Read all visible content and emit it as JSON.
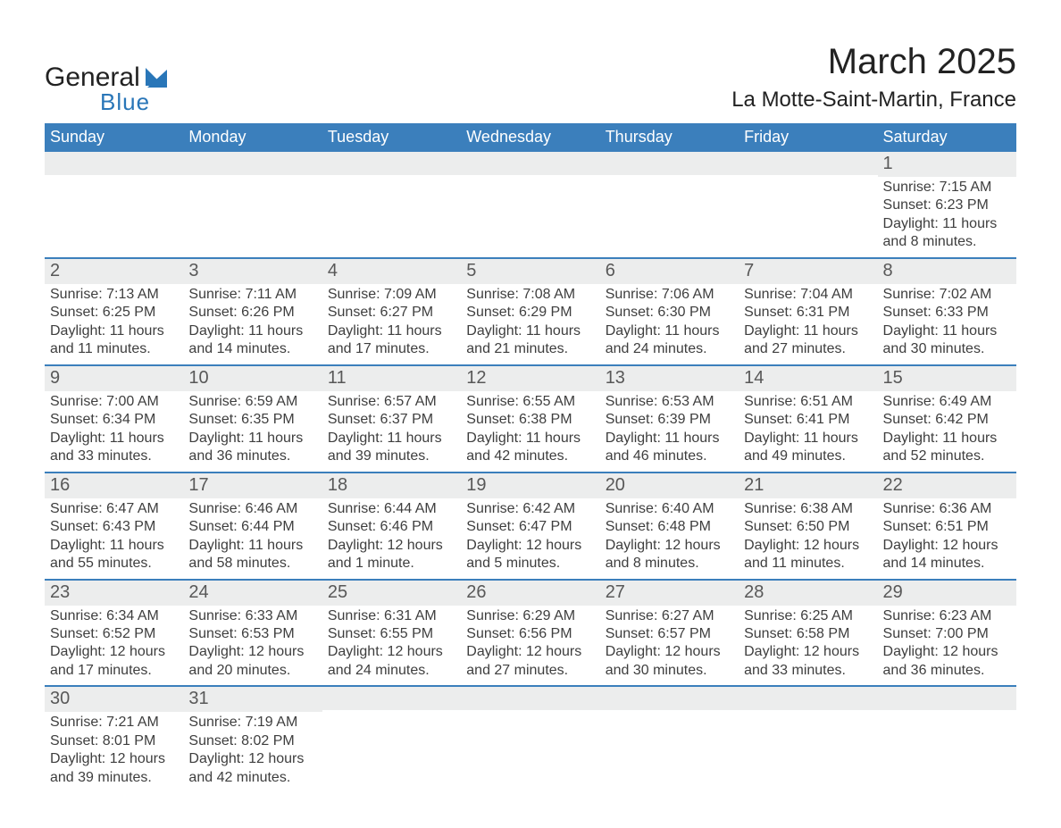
{
  "brand": {
    "word1": "General",
    "word2": "Blue",
    "word1_color": "#222222",
    "word2_color": "#2976b8",
    "sail_color": "#2976b8"
  },
  "title": {
    "month": "March 2025",
    "location": "La Motte-Saint-Martin, France"
  },
  "style": {
    "header_bg": "#3b7fbc",
    "header_text": "#ffffff",
    "daynum_bg": "#eceded",
    "daynum_text": "#585858",
    "body_text": "#3e3e3e",
    "row_border": "#3b7fbc",
    "title_fontsize": 40,
    "location_fontsize": 24,
    "dayhead_fontsize": 18,
    "daynum_fontsize": 20,
    "body_fontsize": 16
  },
  "day_headers": [
    "Sunday",
    "Monday",
    "Tuesday",
    "Wednesday",
    "Thursday",
    "Friday",
    "Saturday"
  ],
  "weeks": [
    [
      {
        "n": "",
        "sr": "",
        "ss": "",
        "dl": ""
      },
      {
        "n": "",
        "sr": "",
        "ss": "",
        "dl": ""
      },
      {
        "n": "",
        "sr": "",
        "ss": "",
        "dl": ""
      },
      {
        "n": "",
        "sr": "",
        "ss": "",
        "dl": ""
      },
      {
        "n": "",
        "sr": "",
        "ss": "",
        "dl": ""
      },
      {
        "n": "",
        "sr": "",
        "ss": "",
        "dl": ""
      },
      {
        "n": "1",
        "sr": "Sunrise: 7:15 AM",
        "ss": "Sunset: 6:23 PM",
        "dl": "Daylight: 11 hours and 8 minutes."
      }
    ],
    [
      {
        "n": "2",
        "sr": "Sunrise: 7:13 AM",
        "ss": "Sunset: 6:25 PM",
        "dl": "Daylight: 11 hours and 11 minutes."
      },
      {
        "n": "3",
        "sr": "Sunrise: 7:11 AM",
        "ss": "Sunset: 6:26 PM",
        "dl": "Daylight: 11 hours and 14 minutes."
      },
      {
        "n": "4",
        "sr": "Sunrise: 7:09 AM",
        "ss": "Sunset: 6:27 PM",
        "dl": "Daylight: 11 hours and 17 minutes."
      },
      {
        "n": "5",
        "sr": "Sunrise: 7:08 AM",
        "ss": "Sunset: 6:29 PM",
        "dl": "Daylight: 11 hours and 21 minutes."
      },
      {
        "n": "6",
        "sr": "Sunrise: 7:06 AM",
        "ss": "Sunset: 6:30 PM",
        "dl": "Daylight: 11 hours and 24 minutes."
      },
      {
        "n": "7",
        "sr": "Sunrise: 7:04 AM",
        "ss": "Sunset: 6:31 PM",
        "dl": "Daylight: 11 hours and 27 minutes."
      },
      {
        "n": "8",
        "sr": "Sunrise: 7:02 AM",
        "ss": "Sunset: 6:33 PM",
        "dl": "Daylight: 11 hours and 30 minutes."
      }
    ],
    [
      {
        "n": "9",
        "sr": "Sunrise: 7:00 AM",
        "ss": "Sunset: 6:34 PM",
        "dl": "Daylight: 11 hours and 33 minutes."
      },
      {
        "n": "10",
        "sr": "Sunrise: 6:59 AM",
        "ss": "Sunset: 6:35 PM",
        "dl": "Daylight: 11 hours and 36 minutes."
      },
      {
        "n": "11",
        "sr": "Sunrise: 6:57 AM",
        "ss": "Sunset: 6:37 PM",
        "dl": "Daylight: 11 hours and 39 minutes."
      },
      {
        "n": "12",
        "sr": "Sunrise: 6:55 AM",
        "ss": "Sunset: 6:38 PM",
        "dl": "Daylight: 11 hours and 42 minutes."
      },
      {
        "n": "13",
        "sr": "Sunrise: 6:53 AM",
        "ss": "Sunset: 6:39 PM",
        "dl": "Daylight: 11 hours and 46 minutes."
      },
      {
        "n": "14",
        "sr": "Sunrise: 6:51 AM",
        "ss": "Sunset: 6:41 PM",
        "dl": "Daylight: 11 hours and 49 minutes."
      },
      {
        "n": "15",
        "sr": "Sunrise: 6:49 AM",
        "ss": "Sunset: 6:42 PM",
        "dl": "Daylight: 11 hours and 52 minutes."
      }
    ],
    [
      {
        "n": "16",
        "sr": "Sunrise: 6:47 AM",
        "ss": "Sunset: 6:43 PM",
        "dl": "Daylight: 11 hours and 55 minutes."
      },
      {
        "n": "17",
        "sr": "Sunrise: 6:46 AM",
        "ss": "Sunset: 6:44 PM",
        "dl": "Daylight: 11 hours and 58 minutes."
      },
      {
        "n": "18",
        "sr": "Sunrise: 6:44 AM",
        "ss": "Sunset: 6:46 PM",
        "dl": "Daylight: 12 hours and 1 minute."
      },
      {
        "n": "19",
        "sr": "Sunrise: 6:42 AM",
        "ss": "Sunset: 6:47 PM",
        "dl": "Daylight: 12 hours and 5 minutes."
      },
      {
        "n": "20",
        "sr": "Sunrise: 6:40 AM",
        "ss": "Sunset: 6:48 PM",
        "dl": "Daylight: 12 hours and 8 minutes."
      },
      {
        "n": "21",
        "sr": "Sunrise: 6:38 AM",
        "ss": "Sunset: 6:50 PM",
        "dl": "Daylight: 12 hours and 11 minutes."
      },
      {
        "n": "22",
        "sr": "Sunrise: 6:36 AM",
        "ss": "Sunset: 6:51 PM",
        "dl": "Daylight: 12 hours and 14 minutes."
      }
    ],
    [
      {
        "n": "23",
        "sr": "Sunrise: 6:34 AM",
        "ss": "Sunset: 6:52 PM",
        "dl": "Daylight: 12 hours and 17 minutes."
      },
      {
        "n": "24",
        "sr": "Sunrise: 6:33 AM",
        "ss": "Sunset: 6:53 PM",
        "dl": "Daylight: 12 hours and 20 minutes."
      },
      {
        "n": "25",
        "sr": "Sunrise: 6:31 AM",
        "ss": "Sunset: 6:55 PM",
        "dl": "Daylight: 12 hours and 24 minutes."
      },
      {
        "n": "26",
        "sr": "Sunrise: 6:29 AM",
        "ss": "Sunset: 6:56 PM",
        "dl": "Daylight: 12 hours and 27 minutes."
      },
      {
        "n": "27",
        "sr": "Sunrise: 6:27 AM",
        "ss": "Sunset: 6:57 PM",
        "dl": "Daylight: 12 hours and 30 minutes."
      },
      {
        "n": "28",
        "sr": "Sunrise: 6:25 AM",
        "ss": "Sunset: 6:58 PM",
        "dl": "Daylight: 12 hours and 33 minutes."
      },
      {
        "n": "29",
        "sr": "Sunrise: 6:23 AM",
        "ss": "Sunset: 7:00 PM",
        "dl": "Daylight: 12 hours and 36 minutes."
      }
    ],
    [
      {
        "n": "30",
        "sr": "Sunrise: 7:21 AM",
        "ss": "Sunset: 8:01 PM",
        "dl": "Daylight: 12 hours and 39 minutes."
      },
      {
        "n": "31",
        "sr": "Sunrise: 7:19 AM",
        "ss": "Sunset: 8:02 PM",
        "dl": "Daylight: 12 hours and 42 minutes."
      },
      {
        "n": "",
        "sr": "",
        "ss": "",
        "dl": ""
      },
      {
        "n": "",
        "sr": "",
        "ss": "",
        "dl": ""
      },
      {
        "n": "",
        "sr": "",
        "ss": "",
        "dl": ""
      },
      {
        "n": "",
        "sr": "",
        "ss": "",
        "dl": ""
      },
      {
        "n": "",
        "sr": "",
        "ss": "",
        "dl": ""
      }
    ]
  ]
}
